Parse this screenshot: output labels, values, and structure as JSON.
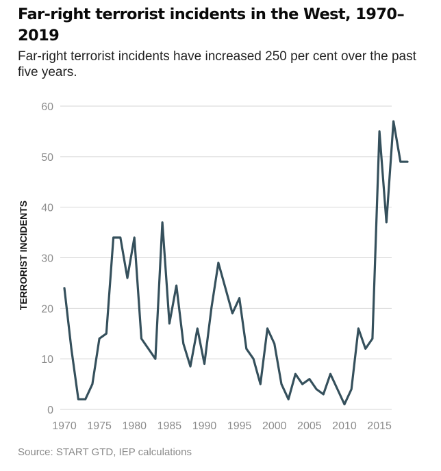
{
  "header": {
    "title": "Far-right terrorist incidents in the West, 1970–2019",
    "subtitle": "Far-right terrorist incidents have increased 250 per cent over the past five years."
  },
  "footer": {
    "source": "Source: START GTD, IEP calculations"
  },
  "chart_data": {
    "type": "line",
    "title": "Far-right terrorist incidents in the West, 1970–2019",
    "subtitle": "Far-right terrorist incidents have increased 250 per cent over the past five years.",
    "xlabel": "",
    "ylabel": "TERRORIST INCIDENTS",
    "xlim": [
      1970,
      2019
    ],
    "ylim": [
      0,
      60
    ],
    "xticks": [
      1970,
      1975,
      1980,
      1985,
      1990,
      1995,
      2000,
      2005,
      2010,
      2015
    ],
    "yticks": [
      0,
      10,
      20,
      30,
      40,
      50,
      60
    ],
    "grid": "horizontal",
    "legend": "none",
    "line_color": "#35505c",
    "x": [
      1970,
      1971,
      1972,
      1973,
      1974,
      1975,
      1976,
      1977,
      1978,
      1979,
      1980,
      1981,
      1982,
      1983,
      1984,
      1985,
      1986,
      1987,
      1988,
      1989,
      1990,
      1991,
      1992,
      1993,
      1994,
      1995,
      1996,
      1997,
      1998,
      1999,
      2000,
      2001,
      2002,
      2003,
      2004,
      2005,
      2006,
      2007,
      2008,
      2009,
      2010,
      2011,
      2012,
      2013,
      2014,
      2015,
      2016,
      2017,
      2018,
      2019
    ],
    "series": [
      {
        "values": [
          24,
          12,
          2,
          2,
          5,
          14,
          15,
          34,
          34,
          26,
          34,
          14,
          12,
          10,
          37,
          17,
          24.5,
          13,
          8.5,
          16,
          9,
          20,
          29,
          24,
          19,
          22,
          12,
          10,
          5,
          16,
          13,
          5,
          2,
          7,
          5,
          6,
          4,
          3,
          7,
          4,
          1,
          4,
          16,
          12,
          14,
          55,
          37,
          57,
          49,
          49
        ]
      }
    ]
  }
}
